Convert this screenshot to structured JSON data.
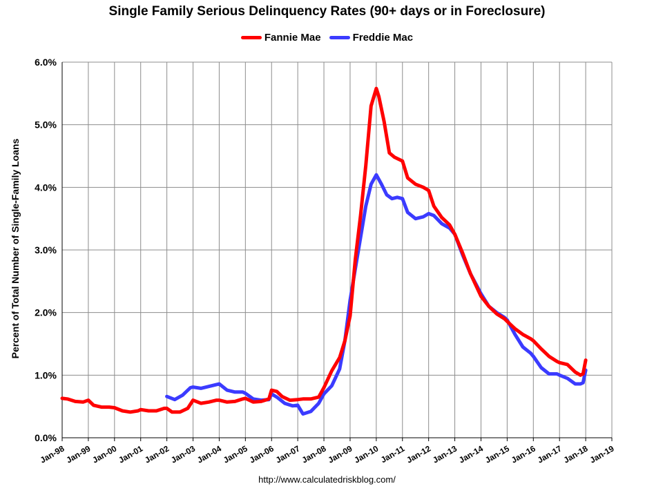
{
  "chart_data": {
    "type": "line",
    "title": "Single Family Serious Delinquency Rates (90+ days or in Foreclosure)",
    "xlabel": "",
    "ylabel": "Percent of Total Number of Single-Family Loans",
    "source": "http://www.calculatedriskblog.com/",
    "ylim": [
      0,
      6
    ],
    "xlim": [
      1998,
      2019
    ],
    "ytick_labels": [
      "0.0%",
      "1.0%",
      "2.0%",
      "3.0%",
      "4.0%",
      "5.0%",
      "6.0%"
    ],
    "ytick_values": [
      0,
      1,
      2,
      3,
      4,
      5,
      6
    ],
    "xtick_labels": [
      "Jan-98",
      "Jan-99",
      "Jan-00",
      "Jan-01",
      "Jan-02",
      "Jan-03",
      "Jan-04",
      "Jan-05",
      "Jan-06",
      "Jan-07",
      "Jan-08",
      "Jan-09",
      "Jan-10",
      "Jan-11",
      "Jan-12",
      "Jan-13",
      "Jan-14",
      "Jan-15",
      "Jan-16",
      "Jan-17",
      "Jan-18",
      "Jan-19"
    ],
    "xtick_values": [
      1998,
      1999,
      2000,
      2001,
      2002,
      2003,
      2004,
      2005,
      2006,
      2007,
      2008,
      2009,
      2010,
      2011,
      2012,
      2013,
      2014,
      2015,
      2016,
      2017,
      2018,
      2019
    ],
    "grid": true,
    "legend_position": "top-center",
    "series": [
      {
        "name": "Fannie Mae",
        "color": "#ff0000",
        "x": [
          1998.0,
          1998.2,
          1998.5,
          1998.8,
          1999.0,
          1999.2,
          1999.5,
          1999.8,
          2000.0,
          2000.3,
          2000.6,
          2000.9,
          2001.0,
          2001.3,
          2001.6,
          2001.9,
          2002.0,
          2002.2,
          2002.5,
          2002.8,
          2003.0,
          2003.3,
          2003.6,
          2003.9,
          2004.0,
          2004.3,
          2004.6,
          2004.9,
          2005.0,
          2005.3,
          2005.6,
          2005.9,
          2006.0,
          2006.2,
          2006.4,
          2006.7,
          2007.0,
          2007.2,
          2007.5,
          2007.8,
          2008.0,
          2008.3,
          2008.6,
          2008.8,
          2009.0,
          2009.2,
          2009.4,
          2009.6,
          2009.8,
          2010.0,
          2010.1,
          2010.3,
          2010.5,
          2010.7,
          2011.0,
          2011.2,
          2011.5,
          2011.8,
          2012.0,
          2012.2,
          2012.5,
          2012.8,
          2013.0,
          2013.3,
          2013.6,
          2013.9,
          2014.0,
          2014.3,
          2014.6,
          2014.9,
          2015.0,
          2015.3,
          2015.6,
          2015.9,
          2016.0,
          2016.3,
          2016.6,
          2016.9,
          2017.0,
          2017.3,
          2017.6,
          2017.8,
          2017.9,
          2018.0
        ],
        "y": [
          0.63,
          0.62,
          0.58,
          0.57,
          0.6,
          0.52,
          0.49,
          0.49,
          0.48,
          0.43,
          0.41,
          0.43,
          0.45,
          0.43,
          0.43,
          0.47,
          0.47,
          0.41,
          0.41,
          0.47,
          0.6,
          0.55,
          0.57,
          0.6,
          0.6,
          0.57,
          0.58,
          0.62,
          0.63,
          0.57,
          0.58,
          0.62,
          0.76,
          0.74,
          0.66,
          0.6,
          0.61,
          0.62,
          0.62,
          0.65,
          0.8,
          1.07,
          1.28,
          1.55,
          1.95,
          2.85,
          3.55,
          4.35,
          5.3,
          5.58,
          5.45,
          5.05,
          4.55,
          4.48,
          4.42,
          4.15,
          4.05,
          4.0,
          3.95,
          3.7,
          3.52,
          3.4,
          3.25,
          2.95,
          2.62,
          2.35,
          2.26,
          2.1,
          1.98,
          1.9,
          1.86,
          1.74,
          1.65,
          1.58,
          1.55,
          1.42,
          1.3,
          1.22,
          1.2,
          1.17,
          1.05,
          1.0,
          1.02,
          1.24
        ]
      },
      {
        "name": "Freddie Mac",
        "color": "#3b3bff",
        "x": [
          2002.0,
          2002.3,
          2002.6,
          2002.9,
          2003.0,
          2003.3,
          2003.6,
          2003.9,
          2004.0,
          2004.3,
          2004.6,
          2004.9,
          2005.0,
          2005.3,
          2005.6,
          2005.9,
          2006.0,
          2006.2,
          2006.5,
          2006.8,
          2007.0,
          2007.2,
          2007.5,
          2007.8,
          2008.0,
          2008.3,
          2008.6,
          2008.8,
          2009.0,
          2009.2,
          2009.4,
          2009.6,
          2009.8,
          2010.0,
          2010.2,
          2010.4,
          2010.6,
          2010.8,
          2011.0,
          2011.2,
          2011.5,
          2011.8,
          2012.0,
          2012.2,
          2012.5,
          2012.8,
          2013.0,
          2013.3,
          2013.6,
          2013.9,
          2014.0,
          2014.3,
          2014.6,
          2014.9,
          2015.0,
          2015.3,
          2015.6,
          2015.9,
          2016.0,
          2016.3,
          2016.6,
          2016.9,
          2017.0,
          2017.3,
          2017.6,
          2017.8,
          2017.9,
          2018.0
        ],
        "y": [
          0.66,
          0.61,
          0.68,
          0.8,
          0.81,
          0.79,
          0.82,
          0.85,
          0.86,
          0.76,
          0.73,
          0.73,
          0.71,
          0.62,
          0.6,
          0.61,
          0.7,
          0.65,
          0.55,
          0.51,
          0.52,
          0.38,
          0.42,
          0.55,
          0.7,
          0.83,
          1.1,
          1.55,
          2.2,
          2.7,
          3.2,
          3.7,
          4.05,
          4.2,
          4.05,
          3.88,
          3.82,
          3.84,
          3.82,
          3.6,
          3.5,
          3.53,
          3.58,
          3.55,
          3.42,
          3.35,
          3.25,
          2.92,
          2.62,
          2.38,
          2.3,
          2.1,
          2.0,
          1.92,
          1.88,
          1.65,
          1.45,
          1.35,
          1.3,
          1.12,
          1.02,
          1.02,
          1.0,
          0.95,
          0.86,
          0.86,
          0.88,
          1.08
        ]
      }
    ]
  }
}
